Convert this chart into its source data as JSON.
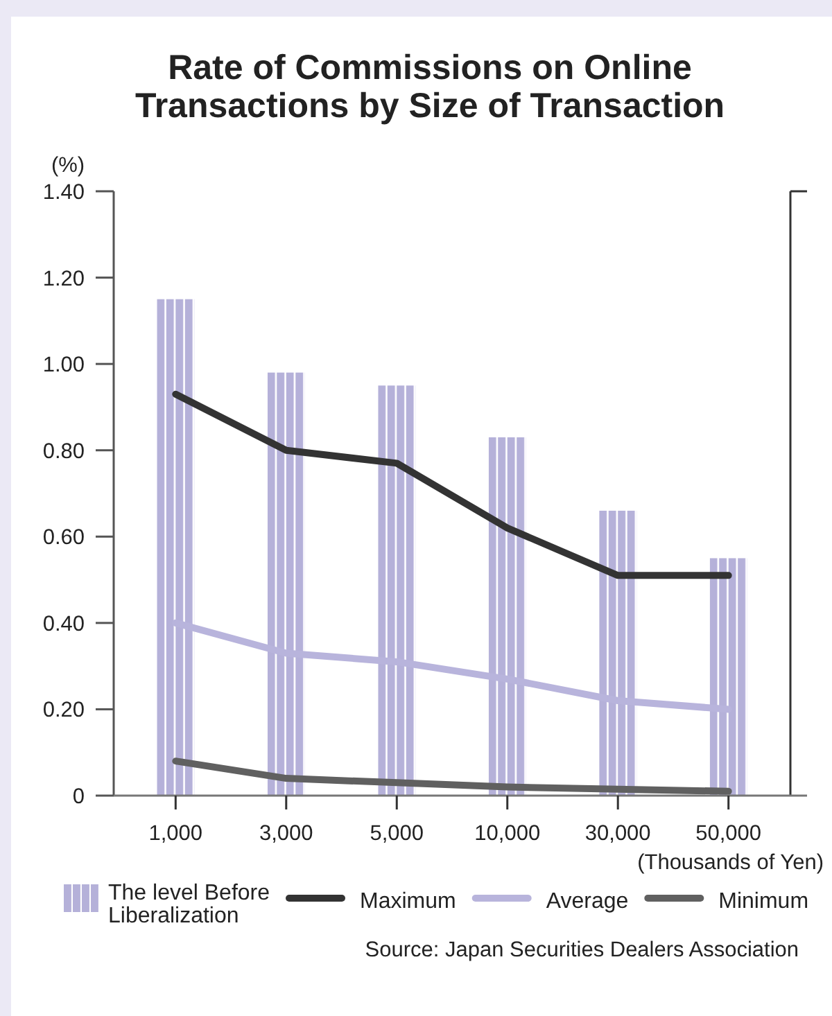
{
  "chart_data": {
    "type": "bar",
    "title": "Rate of Commissions on Online Transactions by Size of Transaction",
    "ylabel": "(%)",
    "xlabel": "(Thousands of Yen)",
    "categories": [
      "1,000",
      "3,000",
      "5,000",
      "10,000",
      "30,000",
      "50,000"
    ],
    "series": [
      {
        "name": "The level Before Liberalization",
        "color": "#b5b1d9",
        "values": [
          1.15,
          0.98,
          0.95,
          0.83,
          0.66,
          0.55
        ]
      },
      {
        "name": "Maximum",
        "type": "line",
        "color": "#333333",
        "values": [
          0.93,
          0.8,
          0.77,
          0.62,
          0.51,
          0.51
        ]
      },
      {
        "name": "Average",
        "type": "line",
        "color": "#b8b4dc",
        "values": [
          0.4,
          0.33,
          0.31,
          0.27,
          0.22,
          0.2
        ]
      },
      {
        "name": "Minimum",
        "type": "line",
        "color": "#606060",
        "values": [
          0.08,
          0.04,
          0.03,
          0.02,
          0.015,
          0.01
        ]
      }
    ],
    "ylim": [
      0,
      1.4
    ],
    "yticks": [
      0,
      {
        "value": 0.2,
        "label": "0.20"
      },
      {
        "value": 0.4,
        "label": "0.40"
      },
      {
        "value": 0.6,
        "label": "0.60"
      },
      {
        "value": 0.8,
        "label": "0.80"
      },
      {
        "value": 1,
        "label": "1.00"
      },
      {
        "value": 1.2,
        "label": "1.20"
      },
      {
        "value": 1.4,
        "label": "1.40"
      }
    ],
    "legend": "bottom",
    "annotations": [
      "Source: Japan Securities Dealers Association"
    ]
  }
}
